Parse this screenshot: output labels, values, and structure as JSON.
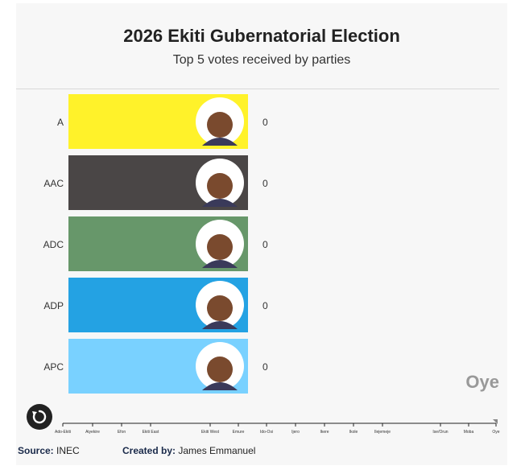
{
  "header": {
    "title": "2026 Ekiti Gubernatorial Election",
    "subtitle": "Top 5 votes received by parties"
  },
  "colors": {
    "A": "#fff22a",
    "AAC": "#4a4646",
    "ADC": "#67976a",
    "ADP": "#24a2e3",
    "APC": "#79d1ff"
  },
  "icons": {
    "replay": "replay-icon"
  },
  "chart_data": {
    "type": "bar",
    "orientation": "horizontal",
    "title": "2026 Ekiti Gubernatorial Election",
    "subtitle": "Top 5 votes received by parties",
    "categories": [
      "A",
      "AAC",
      "ADC",
      "ADP",
      "APC"
    ],
    "values": [
      0,
      0,
      0,
      0,
      0
    ],
    "value_labels": [
      "0",
      "0",
      "0",
      "0",
      "0"
    ],
    "current_frame_label": "Oye",
    "timeline_ticks": [
      "Ado-Ekiti",
      "Aiyekire",
      "Efon",
      "Ekiti East",
      "Ekiti West",
      "Emure",
      "Ido-Osi",
      "Ijero",
      "Ikere",
      "Ikole",
      "Ilejemeje",
      "Ise/Orun",
      "Moba",
      "Oye"
    ],
    "grid": false,
    "legend": "none"
  },
  "footer": {
    "source_label": "Source:",
    "source_value": "INEC",
    "created_label": "Created by:",
    "created_value": "James Emmanuel"
  }
}
